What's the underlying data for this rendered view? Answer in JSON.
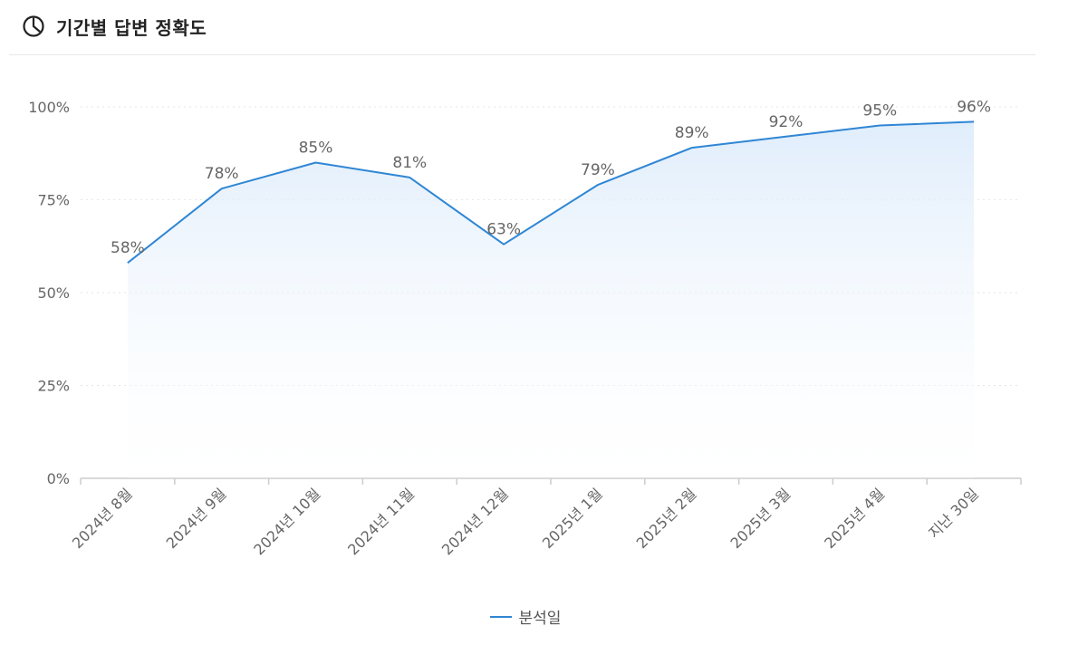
{
  "header": {
    "title": "기간별 답변 정확도",
    "icon": "pie-chart-icon"
  },
  "colors": {
    "line": "#2f86d4",
    "area_top": "#dcebfb",
    "axis": "#cccccc",
    "grid": "#e6e6e6",
    "text": "#666666"
  },
  "chart_data": {
    "type": "area",
    "title": "",
    "xlabel": "",
    "ylabel": "",
    "ylim": [
      0,
      100
    ],
    "y_ticks": [
      "0%",
      "25%",
      "50%",
      "75%",
      "100%"
    ],
    "grid": "horizontal dotted",
    "legend_position": "bottom-center",
    "categories": [
      "2024년 8월",
      "2024년 9월",
      "2024년 10월",
      "2024년 11월",
      "2024년 12월",
      "2025년 1월",
      "2025년 2월",
      "2025년 3월",
      "2025년 4월",
      "지난 30일"
    ],
    "series": [
      {
        "name": "분석일",
        "values": [
          58,
          78,
          85,
          81,
          63,
          79,
          89,
          92,
          95,
          96
        ],
        "labels": [
          "58%",
          "78%",
          "85%",
          "81%",
          "63%",
          "79%",
          "89%",
          "92%",
          "95%",
          "96%"
        ]
      }
    ]
  }
}
